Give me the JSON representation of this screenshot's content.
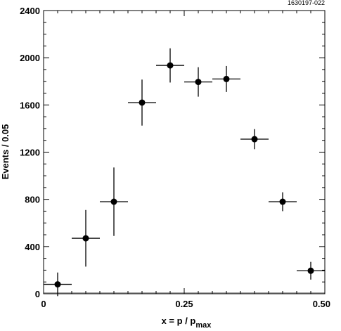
{
  "figure_id": "1630197-022",
  "chart_data": {
    "type": "scatter",
    "xlabel": "x = p / p",
    "xlabel_sub": "max",
    "ylabel": "Events / 0.05",
    "xlim": [
      0,
      0.5
    ],
    "ylim": [
      0,
      2400
    ],
    "x_ticks": [
      0,
      0.25,
      0.5
    ],
    "x_tick_labels": [
      "0",
      "0.25",
      "0.50"
    ],
    "y_ticks": [
      0,
      400,
      800,
      1200,
      1600,
      2000,
      2400
    ],
    "y_tick_labels": [
      "0",
      "400",
      "800",
      "1200",
      "1600",
      "2000",
      "2400"
    ],
    "grid": false,
    "series": [
      {
        "marker": "filled-circle",
        "color": "#000000",
        "points": [
          {
            "x": 0.025,
            "y": 80,
            "xerr": 0.025,
            "yerr": 100
          },
          {
            "x": 0.075,
            "y": 470,
            "xerr": 0.025,
            "yerr": 240
          },
          {
            "x": 0.125,
            "y": 780,
            "xerr": 0.025,
            "yerr": 290
          },
          {
            "x": 0.175,
            "y": 1620,
            "xerr": 0.025,
            "yerr": 195
          },
          {
            "x": 0.225,
            "y": 1935,
            "xerr": 0.025,
            "yerr": 145
          },
          {
            "x": 0.275,
            "y": 1795,
            "xerr": 0.025,
            "yerr": 125
          },
          {
            "x": 0.325,
            "y": 1820,
            "xerr": 0.025,
            "yerr": 110
          },
          {
            "x": 0.375,
            "y": 1310,
            "xerr": 0.025,
            "yerr": 85
          },
          {
            "x": 0.425,
            "y": 780,
            "xerr": 0.025,
            "yerr": 80
          },
          {
            "x": 0.475,
            "y": 195,
            "xerr": 0.025,
            "yerr": 75
          }
        ]
      }
    ],
    "baseline_band": {
      "y_from": 0,
      "y_to": 12,
      "color": "#a0a0a0"
    }
  }
}
